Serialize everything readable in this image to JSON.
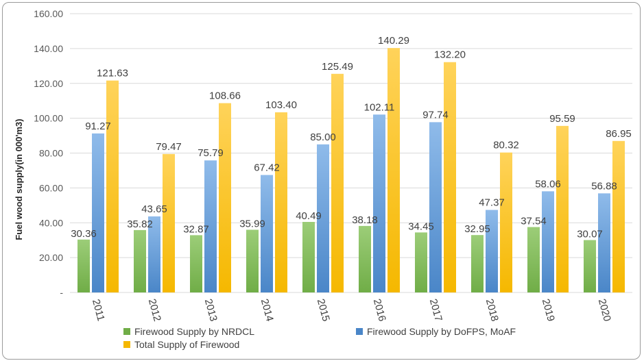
{
  "chart_data": {
    "type": "bar",
    "categories": [
      "2011",
      "2012",
      "2013",
      "2014",
      "2015",
      "2016",
      "2017",
      "2018",
      "2019",
      "2020"
    ],
    "series": [
      {
        "name": "Firewood Supply by NRDCL",
        "values": [
          30.36,
          35.82,
          32.87,
          35.99,
          40.49,
          38.18,
          34.45,
          32.95,
          37.54,
          30.07
        ],
        "color": "#70ad47",
        "color_light": "#9ccd78"
      },
      {
        "name": "Firewood Supply by DoFPS, MoAF",
        "values": [
          91.27,
          43.65,
          75.79,
          67.42,
          85.0,
          102.11,
          97.74,
          47.37,
          58.06,
          56.88
        ],
        "color": "#4a86c8",
        "color_light": "#8fbbea"
      },
      {
        "name": "Total Supply of Firewood",
        "values": [
          121.63,
          79.47,
          108.66,
          103.4,
          125.49,
          140.29,
          132.2,
          80.32,
          95.59,
          86.95
        ],
        "color": "#f5b800",
        "color_light": "#ffd35a"
      }
    ],
    "data_labels": [
      [
        "30.36",
        "35.82",
        "32.87",
        "35.99",
        "40.49",
        "38.18",
        "34.45",
        "32.95",
        "37.54",
        "30.07"
      ],
      [
        "91.27",
        "43.65",
        "75.79",
        "67.42",
        "85.00",
        "102.11",
        "97.74",
        "47.37",
        "58.06",
        "56.88"
      ],
      [
        "121.63",
        "79.47",
        "108.66",
        "103.40",
        "125.49",
        "140.29",
        "132.20",
        "80.32",
        "95.59",
        "86.95"
      ]
    ],
    "ylabel": "Fuel wood supply(in 000'm3)",
    "xlabel": "",
    "ylim": [
      0,
      160
    ],
    "yticks": [
      "-",
      "20.00",
      "40.00",
      "60.00",
      "80.00",
      "100.00",
      "120.00",
      "140.00",
      "160.00"
    ],
    "grid": true,
    "legend_position": "bottom"
  }
}
